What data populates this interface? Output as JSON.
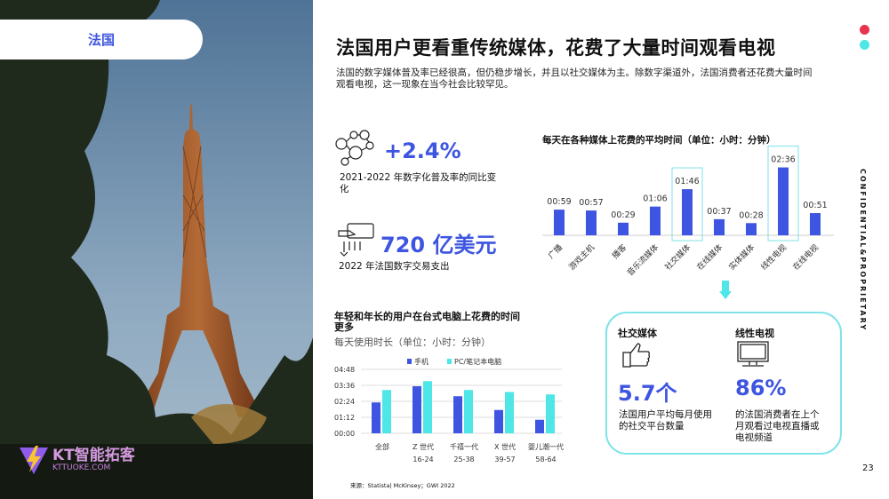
{
  "tag": "法国",
  "title": "法国用户更看重传统媒体，花费了大量时间观看电视",
  "description": "法国的数字媒体普及率已经很高，但仍稳步增长，并且以社交媒体为主。除数字渠道外，法国消费者还花费大量时间观看电视，这一现象在当今社会比较罕见。",
  "stats": [
    {
      "value": "+2.4%",
      "label": "2021-2022 年数字化普及率的同比变化",
      "icon": "network-users-icon"
    },
    {
      "value": "720 亿美元",
      "label": "2022 年法国数字交易支出",
      "icon": "card-payment-icon"
    }
  ],
  "highlights": [
    {
      "heading": "社交媒体",
      "value": "5.7个",
      "label": "法国用户平均每月使用的社交平台数量",
      "icon": "thumbs-up-icon"
    },
    {
      "heading": "线性电视",
      "value": "86%",
      "label": "的法国消费者在上个月观看过电视直播或电视频道",
      "icon": "monitor-icon"
    }
  ],
  "confidential": "CONFIDENTIAL&PROPRIETARY",
  "page_number": "23",
  "source": "来源：Statista| McKinsey；GWI 2022",
  "logo": {
    "name": "KT智能拓客",
    "url_text": "KTTUOKE.COM"
  },
  "colors": {
    "accent": "#3d55e0",
    "cyan": "#4ee6e6",
    "red": "#e8344e"
  },
  "chart_data": [
    {
      "type": "bar",
      "title": "每天在各种媒体上花费的平均时间（单位：小时：分钟）",
      "categories": [
        "广播",
        "游戏主机",
        "播客",
        "音乐流媒体",
        "社交媒体",
        "在线媒体",
        "实体媒体",
        "线性电视",
        "在线电视"
      ],
      "values": [
        "00:59",
        "00:57",
        "00:29",
        "01:06",
        "01:46",
        "00:37",
        "00:28",
        "02:36",
        "00:51"
      ],
      "values_minutes": [
        59,
        57,
        29,
        66,
        106,
        37,
        28,
        156,
        51
      ],
      "highlighted": [
        "社交媒体",
        "线性电视"
      ],
      "bar_color": "#3d55e0"
    },
    {
      "type": "bar",
      "title": "年轻和年长的用户在台式电脑上花费的时间更多",
      "subtitle": "每天使用时长（单位：小时：分钟）",
      "categories": [
        [
          "全部",
          ""
        ],
        [
          "Z 世代",
          "16-24"
        ],
        [
          "千禧一代",
          "25-38"
        ],
        [
          "X 世代",
          "39-57"
        ],
        [
          "婴儿潮一代",
          "58-64"
        ]
      ],
      "series": [
        {
          "name": "手机",
          "values_minutes": [
            139,
            212,
            167,
            105,
            61
          ],
          "color": "#3d55e0"
        },
        {
          "name": "PC/笔记本电脑",
          "values_minutes": [
            195,
            235,
            195,
            186,
            175
          ],
          "color": "#4ee6e6"
        }
      ],
      "yticks": [
        "00:00",
        "01:12",
        "02:24",
        "03:36",
        "04:48"
      ],
      "ylim_minutes": [
        0,
        288
      ],
      "legend": "top"
    }
  ]
}
